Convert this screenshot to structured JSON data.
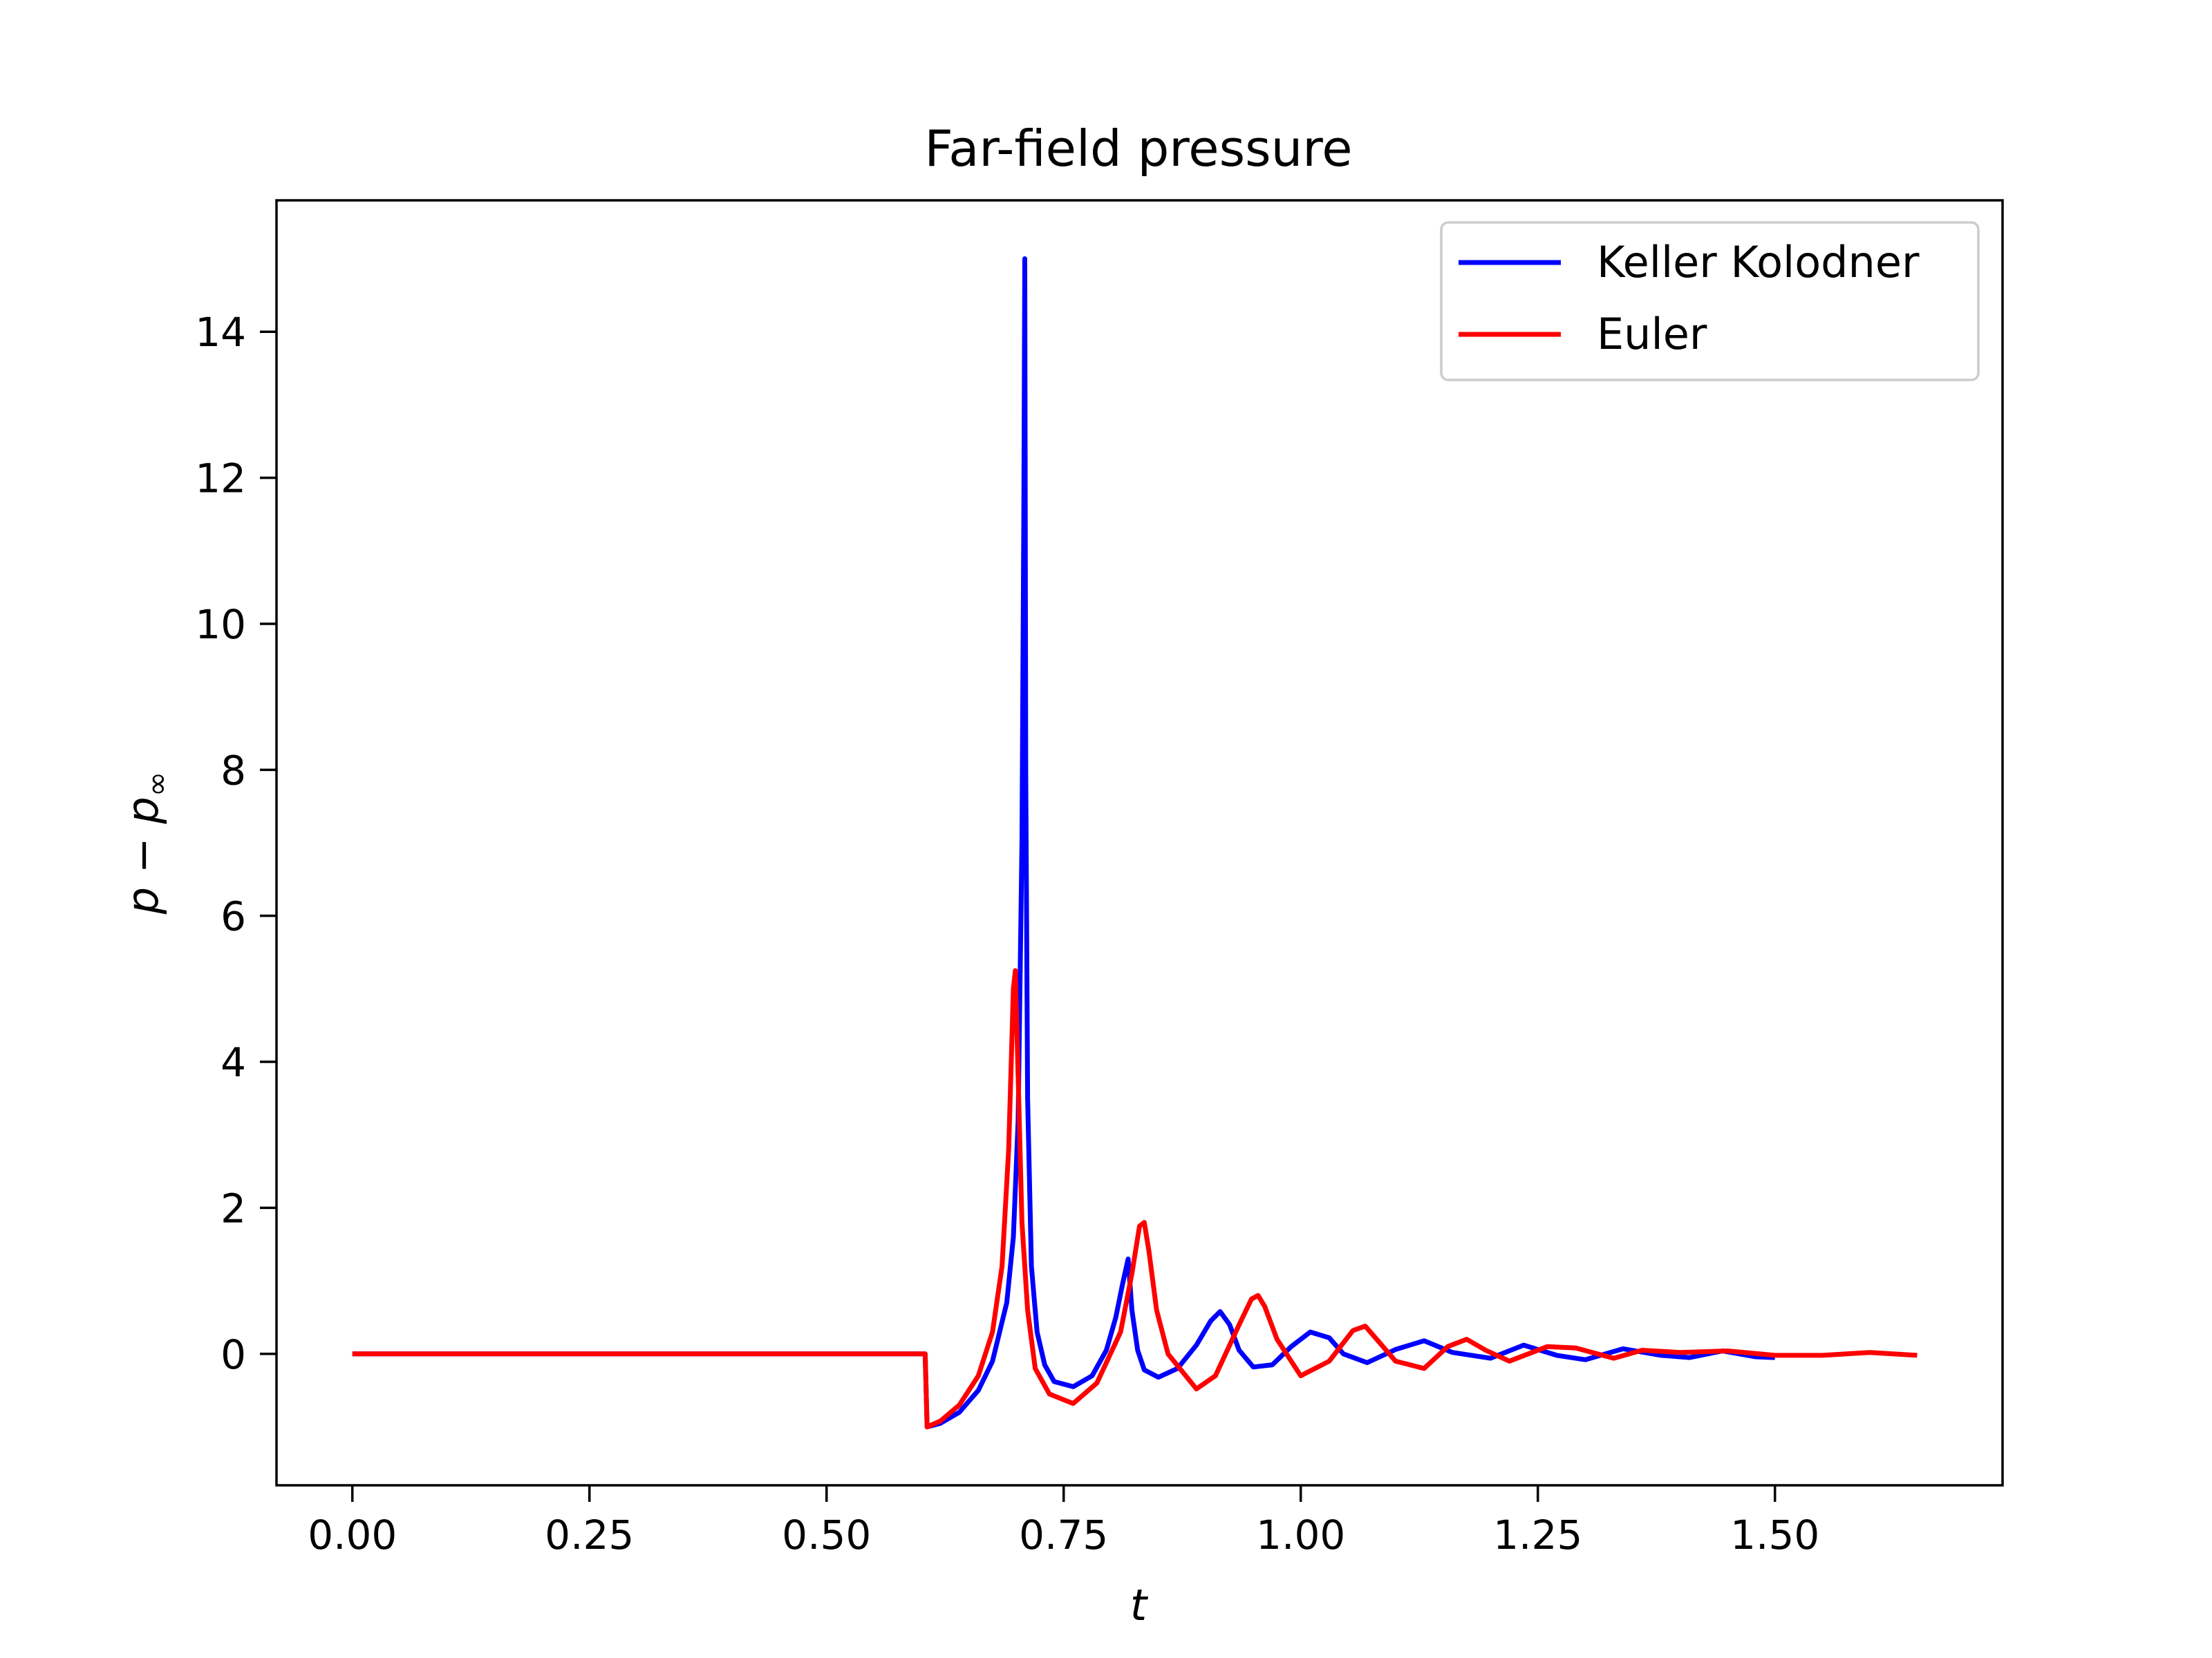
{
  "chart_data": {
    "type": "line",
    "title": "Far-field pressure",
    "xlabel": "t",
    "ylabel": "p − p∞",
    "ylabel_main": "p − p",
    "ylabel_sub": "∞",
    "xlim": [
      -0.08,
      1.74
    ],
    "ylim": [
      -1.8,
      15.8
    ],
    "xticks": [
      0.0,
      0.25,
      0.5,
      0.75,
      1.0,
      1.25,
      1.5
    ],
    "xtick_labels": [
      "0.00",
      "0.25",
      "0.50",
      "0.75",
      "1.00",
      "1.25",
      "1.50"
    ],
    "yticks": [
      0,
      2,
      4,
      6,
      8,
      10,
      12,
      14
    ],
    "ytick_labels": [
      "0",
      "2",
      "4",
      "6",
      "8",
      "10",
      "12",
      "14"
    ],
    "grid": false,
    "legend_position": "top-right",
    "series": [
      {
        "name": "Keller Kolodner",
        "color": "#0000ff",
        "x": [
          0.0,
          0.604,
          0.606,
          0.62,
          0.64,
          0.66,
          0.675,
          0.69,
          0.697,
          0.702,
          0.706,
          0.708,
          0.709,
          0.71,
          0.712,
          0.716,
          0.722,
          0.73,
          0.74,
          0.76,
          0.78,
          0.795,
          0.805,
          0.812,
          0.818,
          0.822,
          0.828,
          0.835,
          0.85,
          0.87,
          0.89,
          0.905,
          0.915,
          0.925,
          0.935,
          0.95,
          0.97,
          0.99,
          1.01,
          1.03,
          1.045,
          1.07,
          1.1,
          1.13,
          1.16,
          1.2,
          1.235,
          1.27,
          1.3,
          1.34,
          1.38,
          1.41,
          1.445,
          1.48,
          1.5
        ],
        "y": [
          0.0,
          0.0,
          -1.0,
          -0.95,
          -0.8,
          -0.5,
          -0.1,
          0.7,
          1.6,
          3.2,
          7.0,
          11.5,
          15.0,
          8.0,
          3.5,
          1.2,
          0.3,
          -0.15,
          -0.38,
          -0.45,
          -0.3,
          0.05,
          0.5,
          0.95,
          1.3,
          0.6,
          0.05,
          -0.22,
          -0.32,
          -0.2,
          0.12,
          0.45,
          0.58,
          0.4,
          0.05,
          -0.18,
          -0.15,
          0.1,
          0.3,
          0.22,
          0.0,
          -0.12,
          0.06,
          0.18,
          0.02,
          -0.06,
          0.12,
          -0.02,
          -0.08,
          0.07,
          -0.02,
          -0.05,
          0.04,
          -0.04,
          -0.05
        ]
      },
      {
        "name": "Euler",
        "color": "#ff0000",
        "x": [
          0.0,
          0.604,
          0.606,
          0.62,
          0.64,
          0.66,
          0.675,
          0.685,
          0.692,
          0.697,
          0.699,
          0.702,
          0.706,
          0.712,
          0.72,
          0.735,
          0.76,
          0.785,
          0.81,
          0.822,
          0.83,
          0.835,
          0.84,
          0.848,
          0.86,
          0.89,
          0.91,
          0.935,
          0.948,
          0.955,
          0.962,
          0.975,
          1.0,
          1.03,
          1.055,
          1.068,
          1.08,
          1.1,
          1.13,
          1.155,
          1.175,
          1.195,
          1.22,
          1.26,
          1.29,
          1.33,
          1.36,
          1.4,
          1.45,
          1.5,
          1.55,
          1.6,
          1.65
        ],
        "y": [
          0.0,
          0.0,
          -1.0,
          -0.92,
          -0.7,
          -0.3,
          0.3,
          1.2,
          2.8,
          5.0,
          5.25,
          3.8,
          1.8,
          0.6,
          -0.2,
          -0.55,
          -0.68,
          -0.4,
          0.3,
          1.1,
          1.75,
          1.8,
          1.4,
          0.6,
          0.0,
          -0.48,
          -0.3,
          0.4,
          0.75,
          0.8,
          0.65,
          0.2,
          -0.3,
          -0.1,
          0.32,
          0.38,
          0.2,
          -0.1,
          -0.2,
          0.1,
          0.2,
          0.05,
          -0.1,
          0.1,
          0.08,
          -0.06,
          0.05,
          0.02,
          0.04,
          -0.02,
          -0.02,
          0.02,
          -0.02
        ]
      }
    ]
  }
}
